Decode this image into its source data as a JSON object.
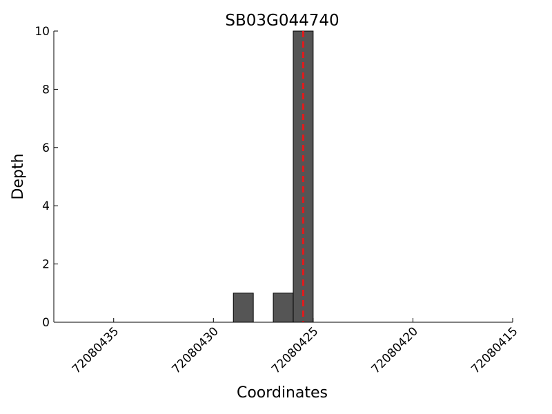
{
  "chart_data": {
    "type": "histogram",
    "title": "SB03G044740",
    "x_label": "Coordinates",
    "y_label": "Depth",
    "bins": [
      72080429,
      72080428,
      72080427,
      72080426,
      72080425
    ],
    "values": [
      1,
      0,
      1,
      10
    ],
    "color": "#555555",
    "xlim": [
      72080438,
      72080415
    ],
    "xticks": [
      72080435,
      72080430,
      72080425,
      72080420,
      72080415
    ],
    "ylim": [
      0,
      10
    ],
    "yticks": [
      0,
      2,
      4,
      6,
      8,
      10
    ],
    "vline": {
      "x": 72080425.5,
      "color": "#e31a1c"
    }
  }
}
